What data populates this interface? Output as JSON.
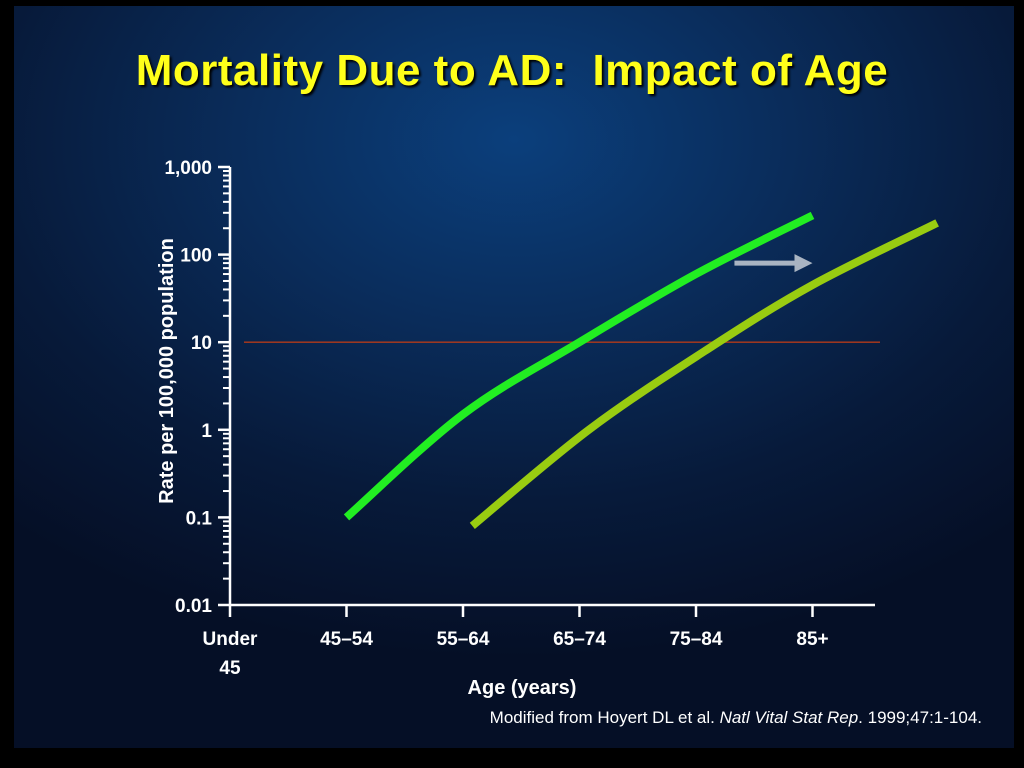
{
  "slide": {
    "title": "Mortality Due to AD:  Impact of Age",
    "citation": {
      "prefix": "Modified from Hoyert DL et al. ",
      "journal": "Natl Vital Stat Rep",
      "suffix": ". 1999;47:1-104."
    }
  },
  "colors": {
    "title": "#ffff1a",
    "series1": "#22ee22",
    "series2": "#99cc11",
    "reference_line": "#b23a1a",
    "arrow": "#a9b4c2",
    "axis": "#ffffff"
  },
  "chart_data": {
    "type": "line",
    "xlabel": "Age (years)",
    "ylabel": "Rate per 100,000 population",
    "yscale": "log",
    "ylim": [
      0.01,
      1000
    ],
    "yticks": [
      {
        "value": 0.01,
        "label": "0.01"
      },
      {
        "value": 0.1,
        "label": "0.1"
      },
      {
        "value": 1,
        "label": "1"
      },
      {
        "value": 10,
        "label": "10"
      },
      {
        "value": 100,
        "label": "100"
      },
      {
        "value": 1000,
        "label": "1,000"
      }
    ],
    "categories": [
      {
        "label": [
          "Under",
          "45"
        ]
      },
      {
        "label": [
          "45–54"
        ]
      },
      {
        "label": [
          "55–64"
        ]
      },
      {
        "label": [
          "65–74"
        ]
      },
      {
        "label": [
          "75–84"
        ]
      },
      {
        "label": [
          "85+"
        ]
      }
    ],
    "series": [
      {
        "color": "#22ee22",
        "points": [
          [
            1.0,
            0.1
          ],
          [
            2.0,
            1.5
          ],
          [
            3.0,
            10
          ],
          [
            4.0,
            60
          ],
          [
            5.0,
            280
          ]
        ]
      },
      {
        "color": "#99cc11",
        "points": [
          [
            2.08,
            0.08
          ],
          [
            3.08,
            1.0
          ],
          [
            4.08,
            8
          ],
          [
            5.0,
            45
          ],
          [
            6.07,
            230
          ]
        ]
      }
    ],
    "reference_line": {
      "y": 10
    },
    "annotations": [
      {
        "type": "arrow",
        "direction": "right",
        "from_x": 4.33,
        "to_x": 5.0,
        "y": 80
      }
    ],
    "grid": false,
    "legend": "none"
  }
}
